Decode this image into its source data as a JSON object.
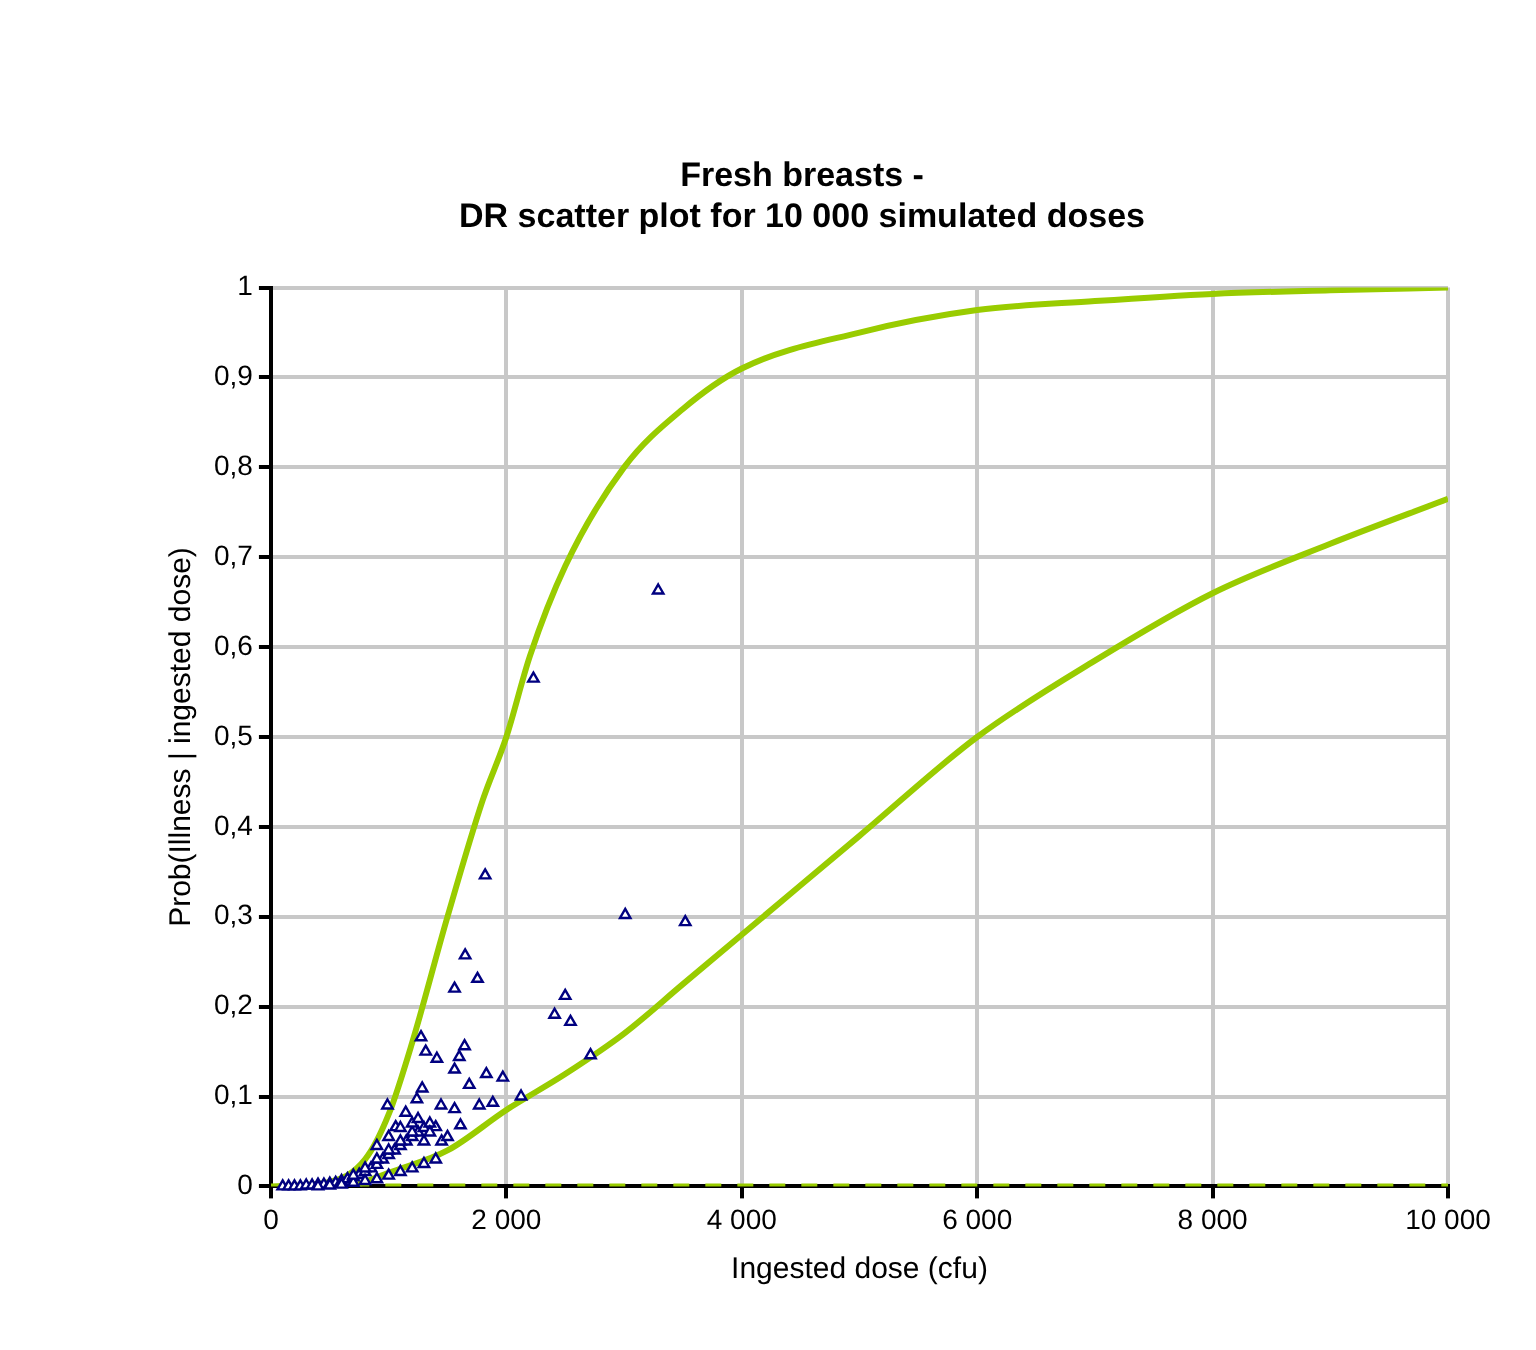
{
  "chart_data": {
    "type": "scatter",
    "title": "Fresh breasts -\nDR scatter plot for 10 000 simulated doses",
    "xlabel": "Ingested dose (cfu)",
    "ylabel": "Prob(Illness | ingested dose)",
    "xlim": [
      0,
      10000
    ],
    "ylim": [
      0,
      1
    ],
    "xticks": [
      0,
      {
        "value": 2000,
        "label": "2 000"
      },
      {
        "value": 4000,
        "label": "4 000"
      },
      {
        "value": 6000,
        "label": "6 000"
      },
      {
        "value": 8000,
        "label": "8 000"
      },
      {
        "value": 10000,
        "label": "10 000"
      }
    ],
    "yticks": [
      0,
      {
        "value": 0.1,
        "label": "0,1"
      },
      {
        "value": 0.2,
        "label": "0,2"
      },
      {
        "value": 0.3,
        "label": "0,3"
      },
      {
        "value": 0.4,
        "label": "0,4"
      },
      {
        "value": 0.5,
        "label": "0,5"
      },
      {
        "value": 0.6,
        "label": "0,6"
      },
      {
        "value": 0.7,
        "label": "0,7"
      },
      {
        "value": 0.8,
        "label": "0,8"
      },
      {
        "value": 0.9,
        "label": "0,9"
      },
      1
    ],
    "grid": true,
    "legend": false,
    "series": [
      {
        "type": "scatter",
        "color": "#000080",
        "marker": "triangle",
        "x": [
          2230,
          3290,
          1820,
          3010,
          3520,
          1650,
          1560,
          1755,
          2500,
          2410,
          2545,
          2715,
          1275,
          1315,
          1410,
          1645,
          1600,
          1560,
          1685,
          1830,
          1970,
          2125,
          1285,
          1240,
          1445,
          1560,
          1770,
          1885,
          1610,
          990,
          1145,
          1060,
          1400,
          100,
          150,
          200,
          250,
          300,
          350,
          400,
          450,
          500,
          550,
          600,
          650,
          700,
          750,
          800,
          850,
          900,
          950,
          1000,
          1050,
          1100,
          1150,
          1200,
          1250,
          1300,
          1350,
          400,
          500,
          600,
          700,
          800,
          900,
          1000,
          1100,
          1200,
          1300,
          1400,
          700,
          800,
          900,
          1000,
          1100,
          1200,
          1300,
          900,
          1000,
          1100,
          1200,
          1250,
          1350,
          1450,
          1500
        ],
        "values": [
          0.565,
          0.663,
          0.346,
          0.302,
          0.294,
          0.257,
          0.22,
          0.231,
          0.212,
          0.191,
          0.183,
          0.146,
          0.166,
          0.15,
          0.142,
          0.156,
          0.144,
          0.13,
          0.113,
          0.125,
          0.121,
          0.1,
          0.109,
          0.097,
          0.09,
          0.086,
          0.09,
          0.093,
          0.068,
          0.09,
          0.082,
          0.066,
          0.066,
          0,
          0,
          0,
          0,
          0.001,
          0.001,
          0.002,
          0.002,
          0.003,
          0.004,
          0.006,
          0.008,
          0.01,
          0.013,
          0.016,
          0.02,
          0.024,
          0.03,
          0.035,
          0.04,
          0.045,
          0.05,
          0.055,
          0.06,
          0.065,
          0.07,
          0,
          0.001,
          0.002,
          0.004,
          0.006,
          0.008,
          0.012,
          0.016,
          0.02,
          0.025,
          0.03,
          0.012,
          0.02,
          0.03,
          0.04,
          0.05,
          0.06,
          0.05,
          0.045,
          0.055,
          0.065,
          0.07,
          0.075,
          0.06,
          0.05,
          0.055
        ]
      },
      {
        "type": "line",
        "color": "#99cc00",
        "marker": "none",
        "line_style": "solid",
        "x": [
          0,
          500,
          800,
          1000,
          1200,
          1500,
          1800,
          2000,
          2200,
          2500,
          3000,
          3500,
          4000,
          5000,
          6000,
          7000,
          8000,
          9000,
          10000
        ],
        "values": [
          0,
          0.005,
          0.03,
          0.08,
          0.16,
          0.3,
          0.43,
          0.5,
          0.59,
          0.69,
          0.8,
          0.865,
          0.91,
          0.95,
          0.975,
          0.985,
          0.993,
          0.997,
          1
        ]
      },
      {
        "type": "line",
        "color": "#99cc00",
        "marker": "none",
        "line_style": "solid",
        "x": [
          700,
          1000,
          1500,
          2000,
          2500,
          3000,
          3500,
          4000,
          5000,
          6000,
          7000,
          8000,
          9000,
          10000
        ],
        "values": [
          0,
          0.015,
          0.04,
          0.085,
          0.125,
          0.17,
          0.225,
          0.28,
          0.39,
          0.5,
          0.585,
          0.66,
          0.715,
          0.765
        ]
      },
      {
        "type": "line",
        "color": "#99cc00",
        "marker": "none",
        "line_style": "dashed",
        "x": [
          700,
          10000
        ],
        "values": [
          0,
          0
        ]
      }
    ]
  }
}
